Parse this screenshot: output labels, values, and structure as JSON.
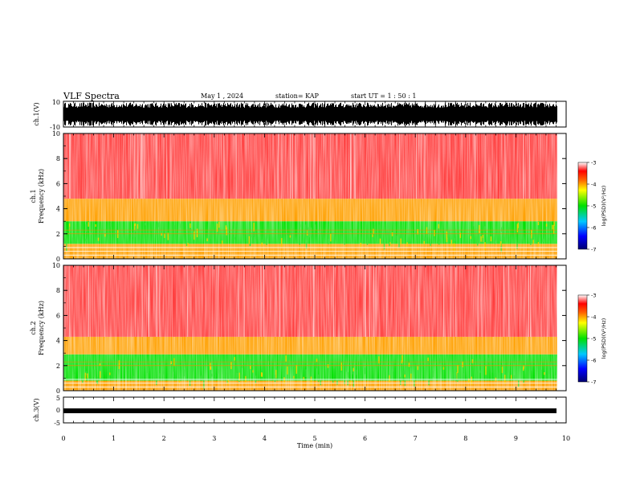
{
  "header": {
    "title": "VLF Spectra",
    "date": "May 1  , 2024",
    "station": "station= KAP",
    "start": "start  UT  =   1  : 50 : 1"
  },
  "chart_data": [
    {
      "type": "line",
      "panel": "ch1-waveform",
      "ylabel": "ch.1(V)",
      "ylim": [
        -10,
        10
      ],
      "yticks": [
        "10",
        "-10"
      ],
      "x_range_min": [
        0,
        9.82
      ],
      "note_values": "dense waveform oscillating roughly between -9 and 9 V"
    },
    {
      "type": "heatmap",
      "panel": "ch1-spectrogram",
      "ylabel": "ch.1\nFrequency (kHz)",
      "ylim": [
        0,
        10
      ],
      "yticks": [
        "0",
        "2",
        "4",
        "6",
        "8",
        "10"
      ],
      "x_range_min": [
        0,
        9.82
      ],
      "bands": [
        {
          "from_khz": 0,
          "to_khz": 1.2,
          "level": -4.0
        },
        {
          "from_khz": 1.2,
          "to_khz": 3.0,
          "level": -5.0
        },
        {
          "from_khz": 3.0,
          "to_khz": 4.8,
          "level": -4.0
        },
        {
          "from_khz": 4.8,
          "to_khz": 10,
          "level": -3.3
        }
      ],
      "colorbar": {
        "label": "log(PSD)(V²/Hz)",
        "ticks": [
          "-3",
          "-4",
          "-5",
          "-6",
          "-7"
        ],
        "range": [
          -7,
          -3
        ]
      }
    },
    {
      "type": "heatmap",
      "panel": "ch2-spectrogram",
      "ylabel": "ch.2\nFrequency (kHz)",
      "ylim": [
        0,
        10
      ],
      "yticks": [
        "0",
        "2",
        "4",
        "6",
        "8",
        "10"
      ],
      "x_range_min": [
        0,
        9.82
      ],
      "bands": [
        {
          "from_khz": 0,
          "to_khz": 0.8,
          "level": -4.0
        },
        {
          "from_khz": 0.8,
          "to_khz": 2.9,
          "level": -5.0
        },
        {
          "from_khz": 2.9,
          "to_khz": 4.3,
          "level": -4.0
        },
        {
          "from_khz": 4.3,
          "to_khz": 10,
          "level": -3.3
        }
      ],
      "colorbar": {
        "label": "log(PSD)(V²/Hz)",
        "ticks": [
          "-3",
          "-4",
          "-5",
          "-6",
          "-7"
        ],
        "range": [
          -7,
          -3
        ]
      }
    },
    {
      "type": "line",
      "panel": "ch3-waveform",
      "ylabel": "ch.3(V)",
      "ylim": [
        -5,
        5
      ],
      "yticks": [
        "5",
        "0",
        "-5"
      ],
      "x_range_min": [
        0,
        9.82
      ],
      "note_values": "thick band around -0.7 V"
    }
  ],
  "xaxis": {
    "label": "Time  (min)",
    "range": [
      0,
      10
    ],
    "ticks": [
      "0",
      "1",
      "2",
      "3",
      "4",
      "5",
      "6",
      "7",
      "8",
      "9",
      "10"
    ]
  },
  "colors": {
    "waveform": "#000000",
    "spectro_bg": "#ff3030",
    "spectro_mid": "#ffd000",
    "spectro_low": "#40e040"
  }
}
